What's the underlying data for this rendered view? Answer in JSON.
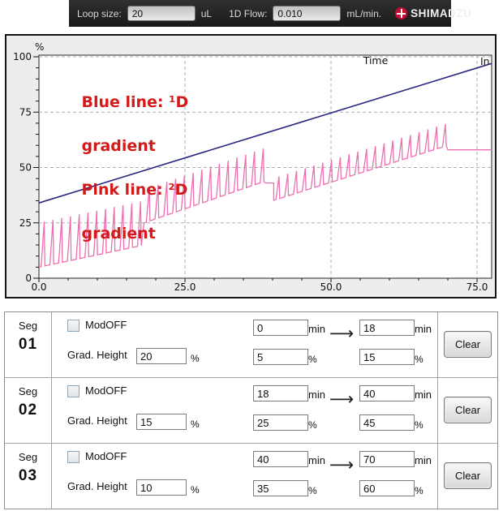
{
  "toolbar": {
    "loop_size_label": "Loop size:",
    "loop_size_value": "20",
    "loop_size_unit": "uL",
    "flow_label": "1D Flow:",
    "flow_value": "0.010",
    "flow_unit": "mL/min.",
    "brand": "SHIMADZU",
    "brand_color": "#c60c30"
  },
  "chart": {
    "percent_symbol": "%",
    "time_label": "Time",
    "right_label": "In",
    "annotation_lines": [
      "Blue line: ¹D",
      "gradient",
      "Pink line: ²D",
      "gradient"
    ],
    "annotation_color": "#d31a1a",
    "y_tick_labels": [
      "100",
      "75",
      "50",
      "25",
      "0"
    ],
    "y_tick_values": [
      100,
      75,
      50,
      25,
      0
    ],
    "x_tick_labels": [
      "0.0",
      "25.0",
      "50.0",
      "75.0"
    ],
    "x_tick_values": [
      0,
      25,
      50,
      75
    ],
    "grid_color": "#adadad",
    "plot_bg": "#ffffff",
    "panel_bg": "#ededed"
  },
  "chart_data": {
    "type": "line",
    "title": "",
    "xlabel": "Time (min)",
    "ylabel": "%",
    "x_range": [
      0,
      77.5
    ],
    "y_range": [
      0,
      100
    ],
    "grid": true,
    "legend_position": "none",
    "series": [
      {
        "name": "1D gradient",
        "color": "#27277f",
        "style": "straight",
        "points": [
          [
            0,
            34
          ],
          [
            77.5,
            97
          ]
        ]
      },
      {
        "name": "2D gradient",
        "color": "#ee6fb0",
        "style": "shifted-sawtooth",
        "modulation_period_min": 1.5,
        "segments": [
          {
            "t_start": 0,
            "t_end": 18,
            "base_start": 5,
            "base_end": 15,
            "height": 20
          },
          {
            "t_start": 18,
            "t_end": 40,
            "base_start": 25,
            "base_end": 45,
            "height": 15
          },
          {
            "t_start": 40,
            "t_end": 70,
            "base_start": 35,
            "base_end": 60,
            "height": 10
          }
        ],
        "holds": [
          {
            "from": 38.8,
            "to": 40.2,
            "level": 43
          },
          {
            "from": 70,
            "to": 77.5,
            "level": 58
          }
        ]
      }
    ]
  },
  "table": {
    "seg_label": "Seg",
    "modoff_label": "ModOFF",
    "grad_height_label": "Grad. Height",
    "min_unit": "min",
    "pct_unit": "%",
    "clear_label": "Clear",
    "arrow": "⟶",
    "segments": [
      {
        "number": "01",
        "modoff_checked": false,
        "grad_height": "20",
        "t_start": "0",
        "t_end": "18",
        "pct_start": "5",
        "pct_end": "15"
      },
      {
        "number": "02",
        "modoff_checked": false,
        "grad_height": "15",
        "t_start": "18",
        "t_end": "40",
        "pct_start": "25",
        "pct_end": "45"
      },
      {
        "number": "03",
        "modoff_checked": false,
        "grad_height": "10",
        "t_start": "40",
        "t_end": "70",
        "pct_start": "35",
        "pct_end": "60"
      }
    ]
  }
}
